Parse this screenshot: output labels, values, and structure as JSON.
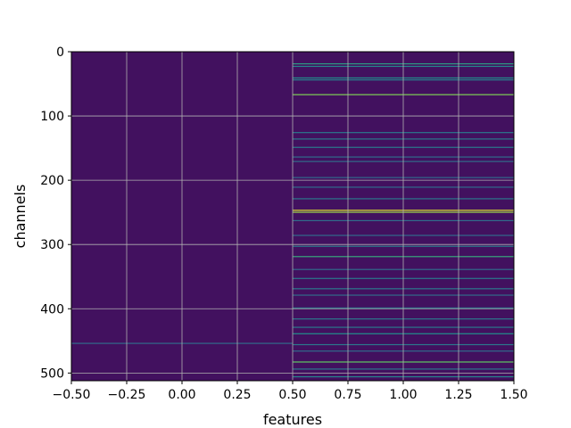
{
  "chart_data": {
    "type": "heatmap",
    "xlabel": "features",
    "ylabel": "channels",
    "xlim": [
      -0.5,
      1.5
    ],
    "ylim": [
      512,
      0
    ],
    "x_ticks": [
      -0.5,
      -0.25,
      0.0,
      0.25,
      0.5,
      0.75,
      1.0,
      1.25,
      1.5
    ],
    "x_tick_labels": [
      "−0.50",
      "−0.25",
      "0.00",
      "0.25",
      "0.50",
      "0.75",
      "1.00",
      "1.25",
      "1.50"
    ],
    "y_ticks": [
      0,
      100,
      200,
      300,
      400,
      500
    ],
    "y_tick_labels": [
      "0",
      "100",
      "200",
      "300",
      "400",
      "500"
    ],
    "grid": true,
    "colormap": "viridis",
    "num_channels": 512,
    "num_features": 2,
    "baseline_value": 0.05,
    "column_0_highlight_rows": [
      {
        "channel": 453,
        "value": 0.35
      }
    ],
    "column_1_highlight_rows": [
      {
        "channel": 18,
        "value": 0.55
      },
      {
        "channel": 22,
        "value": 0.45
      },
      {
        "channel": 40,
        "value": 0.5
      },
      {
        "channel": 43,
        "value": 0.45
      },
      {
        "channel": 66,
        "value": 0.8
      },
      {
        "channel": 125,
        "value": 0.4
      },
      {
        "channel": 135,
        "value": 0.4
      },
      {
        "channel": 148,
        "value": 0.4
      },
      {
        "channel": 163,
        "value": 0.35
      },
      {
        "channel": 170,
        "value": 0.35
      },
      {
        "channel": 195,
        "value": 0.35
      },
      {
        "channel": 210,
        "value": 0.35
      },
      {
        "channel": 228,
        "value": 0.4
      },
      {
        "channel": 246,
        "value": 0.95
      },
      {
        "channel": 249,
        "value": 0.85
      },
      {
        "channel": 262,
        "value": 0.35
      },
      {
        "channel": 285,
        "value": 0.35
      },
      {
        "channel": 302,
        "value": 0.4
      },
      {
        "channel": 318,
        "value": 0.6
      },
      {
        "channel": 338,
        "value": 0.35
      },
      {
        "channel": 352,
        "value": 0.4
      },
      {
        "channel": 368,
        "value": 0.4
      },
      {
        "channel": 378,
        "value": 0.35
      },
      {
        "channel": 398,
        "value": 0.4
      },
      {
        "channel": 415,
        "value": 0.4
      },
      {
        "channel": 428,
        "value": 0.4
      },
      {
        "channel": 438,
        "value": 0.5
      },
      {
        "channel": 455,
        "value": 0.4
      },
      {
        "channel": 465,
        "value": 0.35
      },
      {
        "channel": 482,
        "value": 0.75
      },
      {
        "channel": 493,
        "value": 0.4
      },
      {
        "channel": 505,
        "value": 0.45
      }
    ]
  }
}
